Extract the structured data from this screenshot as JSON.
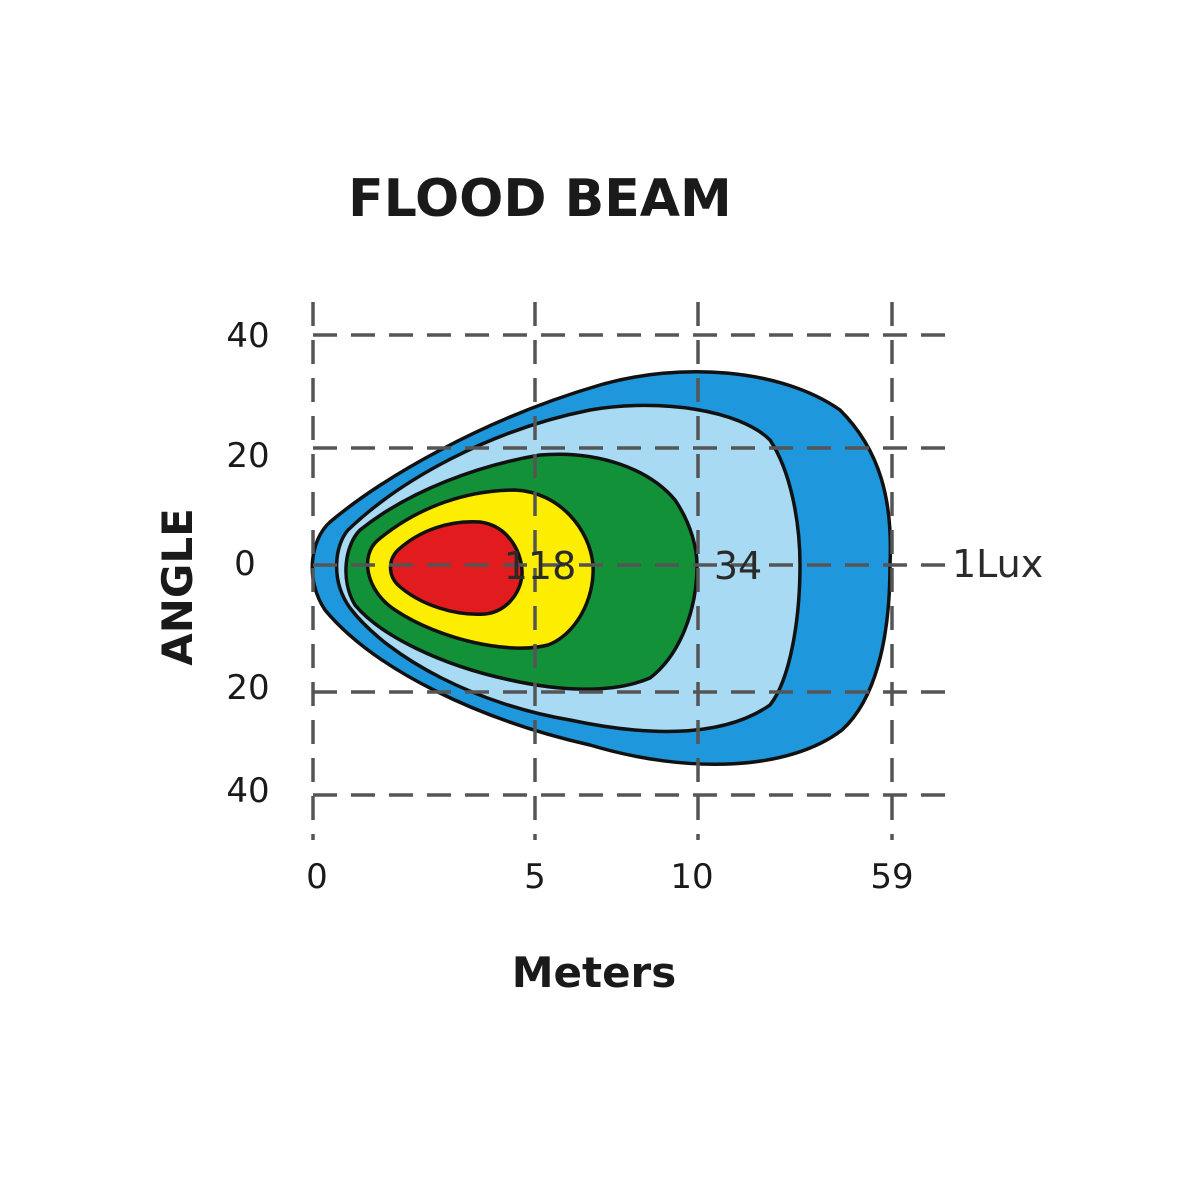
{
  "chart_data": {
    "type": "contour",
    "title": "FLOOD BEAM",
    "xlabel": "Meters",
    "ylabel": "ANGLE",
    "x_ticks": [
      "0",
      "5",
      "10",
      "59"
    ],
    "y_ticks_top_to_bottom": [
      "40",
      "20",
      "0",
      "20",
      "40"
    ],
    "grid": "dashed",
    "zones": [
      {
        "color": "#1f97dc",
        "label": "1Lux",
        "reach_m": 59
      },
      {
        "color": "#a8daf3",
        "label": "",
        "reach_m": null
      },
      {
        "color": "#129139",
        "label": "34",
        "reach_m": 10
      },
      {
        "color": "#fded00",
        "label": "118",
        "reach_m": 5
      },
      {
        "color": "#e21b1e",
        "label": "",
        "reach_m": null
      }
    ],
    "annotations": [
      "118",
      "34",
      "1Lux"
    ]
  }
}
